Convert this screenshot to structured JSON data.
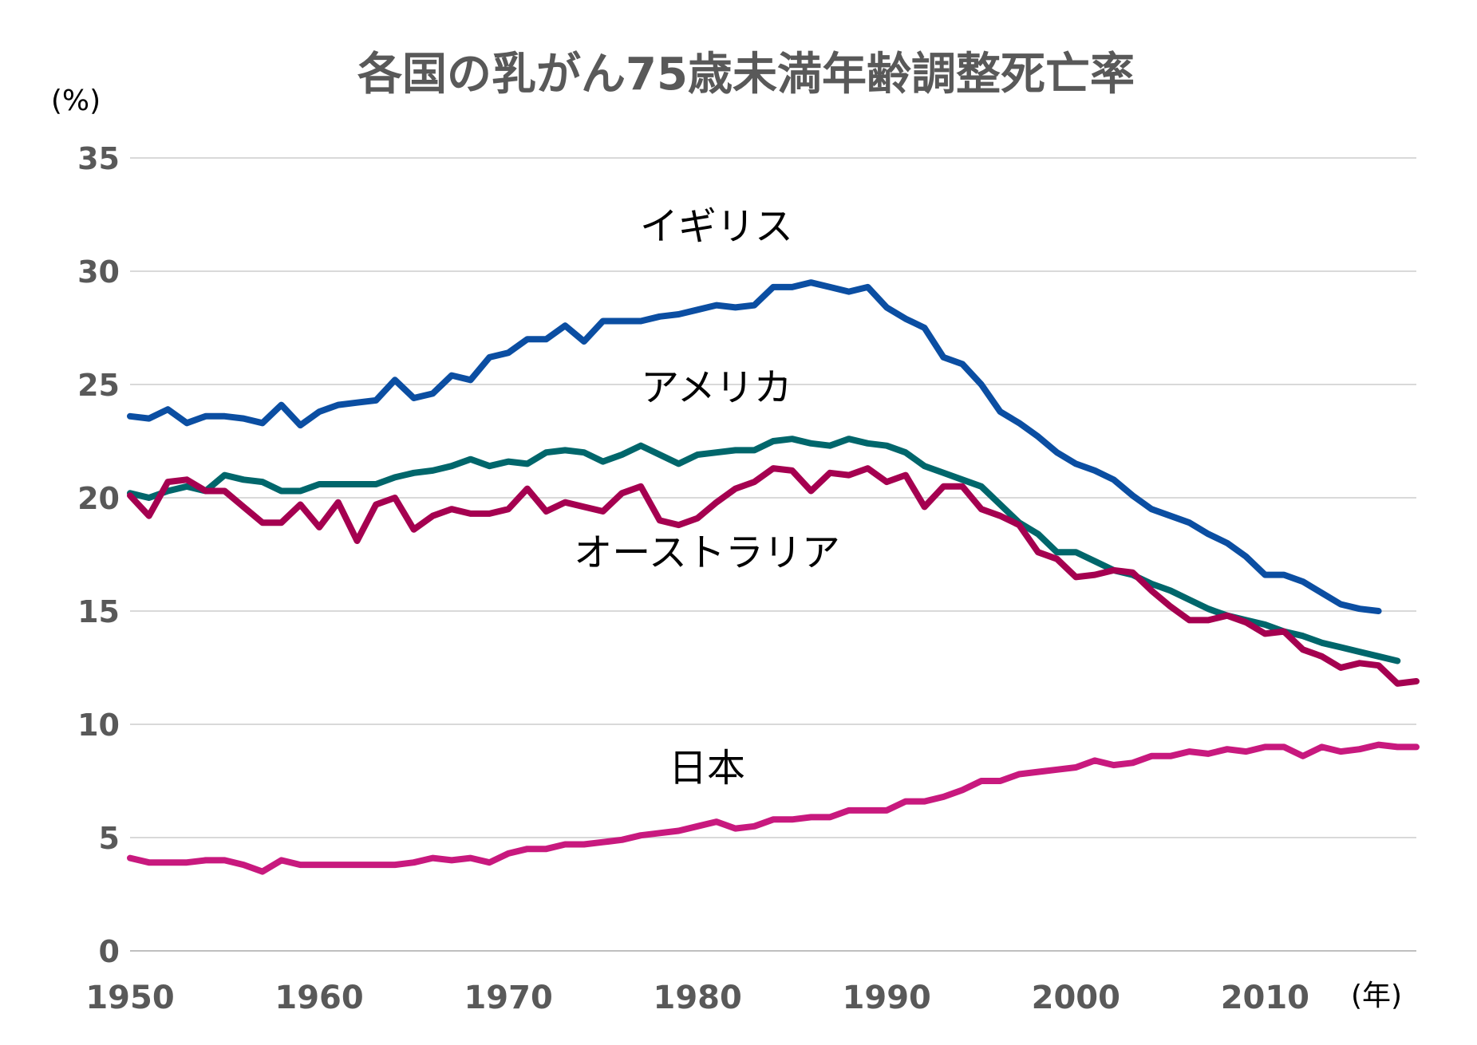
{
  "chart_data": {
    "type": "line",
    "title": "各国の乳がん75歳未満年齢調整死亡率",
    "ylabel": "(%)",
    "xlabel": "(年)",
    "ylim": [
      0,
      35
    ],
    "xlim": [
      1950,
      2018
    ],
    "yticks": [
      0,
      5,
      10,
      15,
      20,
      25,
      30,
      35
    ],
    "xticks": [
      1950,
      1960,
      1970,
      1980,
      1990,
      2000,
      2010
    ],
    "ytick_labels": [
      "0",
      "5",
      "10",
      "15",
      "20",
      "25",
      "30",
      "35"
    ],
    "xtick_labels": [
      "1950",
      "1960",
      "1970",
      "1980",
      "1990",
      "2000",
      "2010"
    ],
    "grid": true,
    "series": [
      {
        "name": "イギリス",
        "color": "#0b4ea2",
        "x_start": 1950,
        "values": [
          23.6,
          23.5,
          23.9,
          23.3,
          23.6,
          23.6,
          23.5,
          23.3,
          24.1,
          23.2,
          23.8,
          24.1,
          24.2,
          24.3,
          25.2,
          24.4,
          24.6,
          25.4,
          25.2,
          26.2,
          26.4,
          27.0,
          27.0,
          27.6,
          26.9,
          27.8,
          27.8,
          27.8,
          28.0,
          28.1,
          28.3,
          28.5,
          28.4,
          28.5,
          29.3,
          29.3,
          29.5,
          29.3,
          29.1,
          29.3,
          28.4,
          27.9,
          27.5,
          26.2,
          25.9,
          25.0,
          23.8,
          23.3,
          22.7,
          22.0,
          21.5,
          21.2,
          20.8,
          20.1,
          19.5,
          19.2,
          18.9,
          18.4,
          18.0,
          17.4,
          16.6,
          16.6,
          16.3,
          15.8,
          15.3,
          15.1,
          15.0
        ],
        "label_x": 1981.0,
        "label_y": 31.4
      },
      {
        "name": "アメリカ",
        "color": "#00666b",
        "x_start": 1950,
        "values": [
          20.2,
          20.0,
          20.3,
          20.5,
          20.3,
          21.0,
          20.8,
          20.7,
          20.3,
          20.3,
          20.6,
          20.6,
          20.6,
          20.6,
          20.9,
          21.1,
          21.2,
          21.4,
          21.7,
          21.4,
          21.6,
          21.5,
          22.0,
          22.1,
          22.0,
          21.6,
          21.9,
          22.3,
          21.9,
          21.5,
          21.9,
          22.0,
          22.1,
          22.1,
          22.5,
          22.6,
          22.4,
          22.3,
          22.6,
          22.4,
          22.3,
          22.0,
          21.4,
          21.1,
          20.8,
          20.5,
          19.7,
          18.9,
          18.4,
          17.6,
          17.6,
          17.2,
          16.8,
          16.6,
          16.2,
          15.9,
          15.5,
          15.1,
          14.8,
          14.6,
          14.4,
          14.1,
          13.9,
          13.6,
          13.4,
          13.2,
          13.0,
          12.8
        ],
        "label_x": 1981.0,
        "label_y": 24.3
      },
      {
        "name": "オーストラリア",
        "color": "#a50050",
        "x_start": 1950,
        "values": [
          20.1,
          19.2,
          20.7,
          20.8,
          20.3,
          20.3,
          19.6,
          18.9,
          18.9,
          19.7,
          18.7,
          19.8,
          18.1,
          19.7,
          20.0,
          18.6,
          19.2,
          19.5,
          19.3,
          19.3,
          19.5,
          20.4,
          19.4,
          19.8,
          19.6,
          19.4,
          20.2,
          20.5,
          19.0,
          18.8,
          19.1,
          19.8,
          20.4,
          20.7,
          21.3,
          21.2,
          20.3,
          21.1,
          21.0,
          21.3,
          20.7,
          21.0,
          19.6,
          20.5,
          20.5,
          19.5,
          19.2,
          18.8,
          17.6,
          17.3,
          16.5,
          16.6,
          16.8,
          16.7,
          15.9,
          15.2,
          14.6,
          14.6,
          14.8,
          14.5,
          14.0,
          14.1,
          13.3,
          13.0,
          12.5,
          12.7,
          12.6,
          11.8,
          11.9
        ],
        "label_x": 1980.5,
        "label_y": 17.0
      },
      {
        "name": "日本",
        "color": "#c8197e",
        "x_start": 1950,
        "values": [
          4.1,
          3.9,
          3.9,
          3.9,
          4.0,
          4.0,
          3.8,
          3.5,
          4.0,
          3.8,
          3.8,
          3.8,
          3.8,
          3.8,
          3.8,
          3.9,
          4.1,
          4.0,
          4.1,
          3.9,
          4.3,
          4.5,
          4.5,
          4.7,
          4.7,
          4.8,
          4.9,
          5.1,
          5.2,
          5.3,
          5.5,
          5.7,
          5.4,
          5.5,
          5.8,
          5.8,
          5.9,
          5.9,
          6.2,
          6.2,
          6.2,
          6.6,
          6.6,
          6.8,
          7.1,
          7.5,
          7.5,
          7.8,
          7.9,
          8.0,
          8.1,
          8.4,
          8.2,
          8.3,
          8.6,
          8.6,
          8.8,
          8.7,
          8.9,
          8.8,
          9.0,
          9.0,
          8.6,
          9.0,
          8.8,
          8.9,
          9.1,
          9.0,
          9.0
        ],
        "label_x": 1980.5,
        "label_y": 7.5
      }
    ]
  }
}
